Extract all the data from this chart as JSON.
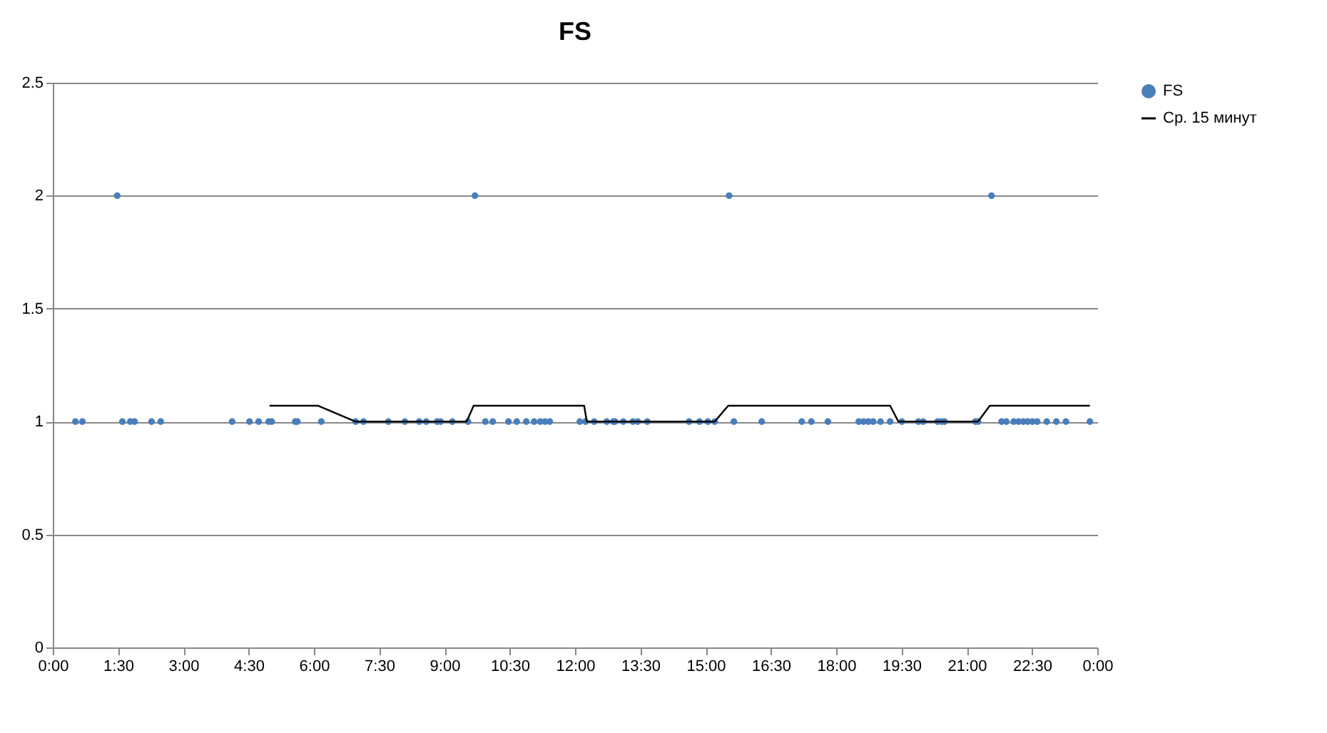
{
  "chart_data": {
    "type": "scatter",
    "title": "FS",
    "xlim": [
      0,
      24
    ],
    "ylim": [
      0,
      2.5
    ],
    "xticks": [
      {
        "value": 0,
        "label": "0:00"
      },
      {
        "value": 1.5,
        "label": "1:30"
      },
      {
        "value": 3,
        "label": "3:00"
      },
      {
        "value": 4.5,
        "label": "4:30"
      },
      {
        "value": 6,
        "label": "6:00"
      },
      {
        "value": 7.5,
        "label": "7:30"
      },
      {
        "value": 9,
        "label": "9:00"
      },
      {
        "value": 10.5,
        "label": "10:30"
      },
      {
        "value": 12,
        "label": "12:00"
      },
      {
        "value": 13.5,
        "label": "13:30"
      },
      {
        "value": 15,
        "label": "15:00"
      },
      {
        "value": 16.5,
        "label": "16:30"
      },
      {
        "value": 18,
        "label": "18:00"
      },
      {
        "value": 19.5,
        "label": "19:30"
      },
      {
        "value": 21,
        "label": "21:00"
      },
      {
        "value": 22.5,
        "label": "22:30"
      },
      {
        "value": 24,
        "label": "0:00"
      }
    ],
    "yticks": [
      0,
      0.5,
      1,
      1.5,
      2,
      2.5
    ],
    "grid": "y",
    "legend": "right",
    "series": [
      {
        "name": "FS",
        "color": "#4a7ebb",
        "marker": "circle",
        "x": [
          0.52,
          0.68,
          1.48,
          1.6,
          1.78,
          1.88,
          2.27,
          2.48,
          4.12,
          4.52,
          4.73,
          4.96,
          5.03,
          5.57,
          5.62,
          6.17,
          6.96,
          7.14,
          7.71,
          8.09,
          8.42,
          8.58,
          8.83,
          8.91,
          9.18,
          9.54,
          9.7,
          9.94,
          10.11,
          10.47,
          10.66,
          10.88,
          11.06,
          11.2,
          11.31,
          11.42,
          12.11,
          12.24,
          12.44,
          12.73,
          12.88,
          12.92,
          13.11,
          13.33,
          13.44,
          13.66,
          14.62,
          14.86,
          15.05,
          15.21,
          15.54,
          15.65,
          16.29,
          17.21,
          17.43,
          17.81,
          18.52,
          18.63,
          18.74,
          18.85,
          19.02,
          19.24,
          19.51,
          19.89,
          20.0,
          20.33,
          20.42,
          20.49,
          21.2,
          21.26,
          21.57,
          21.8,
          21.91,
          22.08,
          22.19,
          22.3,
          22.4,
          22.51,
          22.62,
          22.84,
          23.06,
          23.28,
          23.83
        ],
        "values": [
          1,
          1,
          2,
          1,
          1,
          1,
          1,
          1,
          1,
          1,
          1,
          1,
          1,
          1,
          1,
          1,
          1,
          1,
          1,
          1,
          1,
          1,
          1,
          1,
          1,
          1,
          2,
          1,
          1,
          1,
          1,
          1,
          1,
          1,
          1,
          1,
          1,
          1,
          1,
          1,
          1,
          1,
          1,
          1,
          1,
          1,
          1,
          1,
          1,
          1,
          2,
          1,
          1,
          1,
          1,
          1,
          1,
          1,
          1,
          1,
          1,
          1,
          1,
          1,
          1,
          1,
          1,
          1,
          1,
          1,
          2,
          1,
          1,
          1,
          1,
          1,
          1,
          1,
          1,
          1,
          1,
          1,
          1
        ]
      },
      {
        "name": "Ср. 15 минут",
        "type": "line",
        "color": "#000000",
        "marker": "none",
        "x": [
          4.98,
          6.1,
          6.95,
          9.51,
          9.67,
          12.21,
          12.27,
          15.21,
          15.52,
          19.24,
          19.43,
          21.26,
          21.53,
          23.83
        ],
        "values": [
          1.07,
          1.07,
          1,
          1,
          1.07,
          1.07,
          1,
          1,
          1.07,
          1.07,
          1,
          1,
          1.07,
          1.07
        ]
      }
    ]
  }
}
